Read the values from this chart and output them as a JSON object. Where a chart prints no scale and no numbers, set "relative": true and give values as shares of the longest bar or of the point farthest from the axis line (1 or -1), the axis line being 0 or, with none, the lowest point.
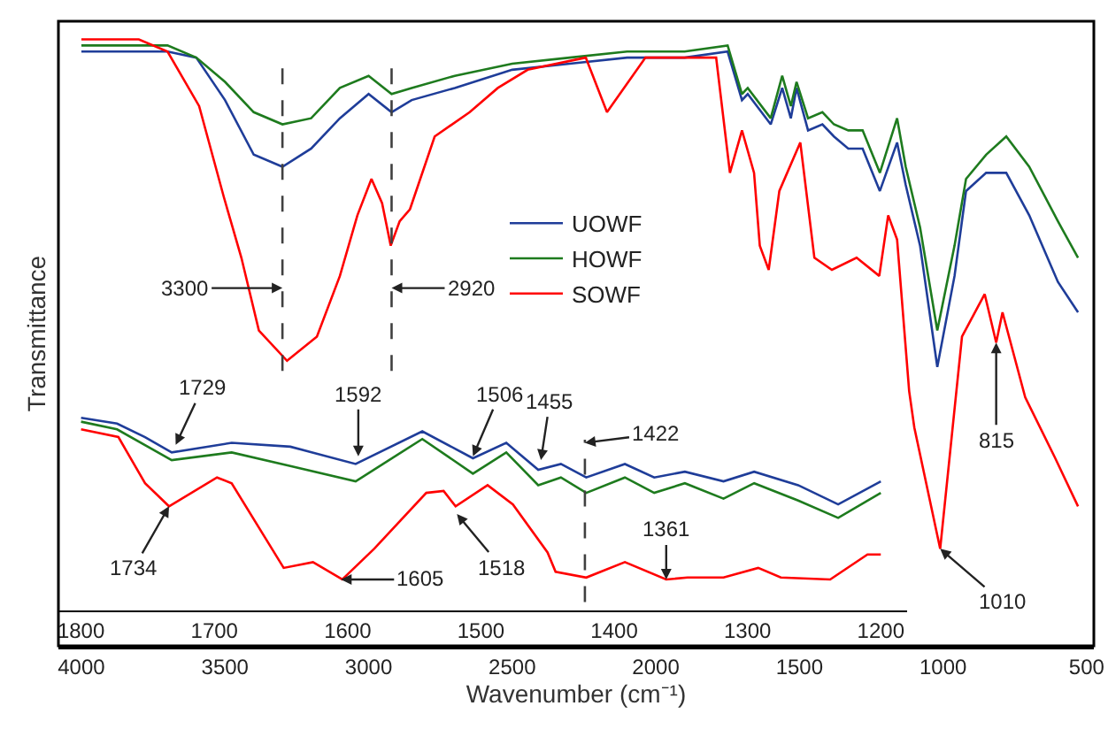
{
  "chart_data": [
    {
      "type": "line",
      "relative": true,
      "xlabel": "Wavenumber (cm⁻¹)",
      "ylabel": "Transmittance",
      "xlim": [
        4080,
        475
      ],
      "xticks": [
        4000,
        3500,
        3000,
        2500,
        2000,
        1500,
        1000,
        500
      ],
      "tick_labels": "x",
      "legend": "center",
      "series": [
        {
          "name": "UOWF",
          "color": "#1f3d99",
          "x": [
            4000,
            3800,
            3700,
            3600,
            3500,
            3400,
            3300,
            3200,
            3100,
            3000,
            2920,
            2850,
            2700,
            2500,
            2300,
            2100,
            1900,
            1750,
            1700,
            1680,
            1600,
            1560,
            1530,
            1510,
            1470,
            1420,
            1380,
            1330,
            1280,
            1220,
            1160,
            1130,
            1080,
            1020,
            960,
            920,
            850,
            780,
            700,
            600,
            530
          ],
          "values": [
            0.98,
            0.98,
            0.98,
            0.97,
            0.9,
            0.81,
            0.79,
            0.82,
            0.87,
            0.91,
            0.88,
            0.9,
            0.92,
            0.95,
            0.96,
            0.97,
            0.97,
            0.98,
            0.9,
            0.91,
            0.86,
            0.92,
            0.87,
            0.92,
            0.85,
            0.86,
            0.84,
            0.82,
            0.82,
            0.75,
            0.83,
            0.76,
            0.66,
            0.46,
            0.61,
            0.75,
            0.78,
            0.78,
            0.71,
            0.6,
            0.55
          ]
        },
        {
          "name": "HOWF",
          "color": "#1e7b1e",
          "x": [
            4000,
            3800,
            3700,
            3600,
            3500,
            3400,
            3300,
            3200,
            3100,
            3000,
            2920,
            2850,
            2700,
            2500,
            2300,
            2100,
            1900,
            1750,
            1700,
            1680,
            1600,
            1560,
            1530,
            1510,
            1470,
            1420,
            1380,
            1330,
            1280,
            1220,
            1160,
            1130,
            1080,
            1020,
            960,
            920,
            850,
            780,
            700,
            600,
            530
          ],
          "values": [
            0.99,
            0.99,
            0.99,
            0.97,
            0.93,
            0.88,
            0.86,
            0.87,
            0.92,
            0.94,
            0.91,
            0.92,
            0.94,
            0.96,
            0.97,
            0.98,
            0.98,
            0.99,
            0.91,
            0.92,
            0.87,
            0.94,
            0.89,
            0.93,
            0.87,
            0.88,
            0.86,
            0.85,
            0.85,
            0.78,
            0.87,
            0.79,
            0.69,
            0.52,
            0.66,
            0.77,
            0.81,
            0.84,
            0.79,
            0.7,
            0.64
          ]
        },
        {
          "name": "SOWF",
          "color": "#ff0000",
          "x": [
            4000,
            3800,
            3700,
            3590,
            3504,
            3443,
            3382,
            3284,
            3180,
            3100,
            3039,
            2990,
            2953,
            2923,
            2892,
            2856,
            2770,
            2648,
            2550,
            2446,
            2244,
            2170,
            2036,
            1790,
            1742,
            1700,
            1658,
            1638,
            1607,
            1570,
            1497,
            1448,
            1387,
            1301,
            1222,
            1191,
            1160,
            1118,
            1100,
            1010,
            934,
            855,
            815,
            793,
            714,
            610,
            530
          ],
          "values": [
            1.0,
            1.0,
            0.98,
            0.89,
            0.74,
            0.64,
            0.52,
            0.47,
            0.51,
            0.61,
            0.71,
            0.77,
            0.73,
            0.66,
            0.7,
            0.72,
            0.84,
            0.88,
            0.92,
            0.95,
            0.97,
            0.88,
            0.97,
            0.97,
            0.78,
            0.85,
            0.78,
            0.66,
            0.62,
            0.75,
            0.83,
            0.64,
            0.62,
            0.64,
            0.61,
            0.71,
            0.67,
            0.42,
            0.36,
            0.16,
            0.51,
            0.58,
            0.5,
            0.55,
            0.41,
            0.31,
            0.23
          ]
        }
      ],
      "ref_lines": [
        {
          "axis": "x",
          "value": 3300,
          "color": "#404040",
          "line_style": "dashed"
        },
        {
          "axis": "x",
          "value": 2920,
          "color": "#404040",
          "line_style": "dashed"
        }
      ],
      "annotations": [
        {
          "text": "3300",
          "x": 3300,
          "y": 0.59
        },
        {
          "text": "2920",
          "x": 2920,
          "y": 0.59
        },
        {
          "text": "815",
          "x": 815,
          "y": 0.5
        },
        {
          "text": "1010",
          "x": 1010,
          "y": 0.16
        }
      ]
    },
    {
      "type": "line",
      "relative": true,
      "xlim": [
        1817,
        1180
      ],
      "xticks": [
        1800,
        1700,
        1600,
        1500,
        1400,
        1300,
        1200
      ],
      "tick_labels": "x",
      "series": [
        {
          "color": "#1f3d99",
          "x": [
            1800,
            1773,
            1752,
            1732,
            1687,
            1643,
            1594,
            1544,
            1506,
            1481,
            1457,
            1440,
            1421,
            1392,
            1370,
            1347,
            1318,
            1295,
            1262,
            1232,
            1200
          ],
          "values": [
            1.0,
            0.97,
            0.9,
            0.82,
            0.87,
            0.85,
            0.76,
            0.93,
            0.79,
            0.87,
            0.73,
            0.76,
            0.69,
            0.76,
            0.69,
            0.72,
            0.67,
            0.72,
            0.65,
            0.55,
            0.67
          ]
        },
        {
          "color": "#1e7b1e",
          "x": [
            1800,
            1773,
            1732,
            1687,
            1643,
            1594,
            1544,
            1506,
            1481,
            1457,
            1440,
            1421,
            1392,
            1370,
            1347,
            1318,
            1295,
            1262,
            1232,
            1200
          ],
          "values": [
            0.98,
            0.94,
            0.78,
            0.82,
            0.75,
            0.67,
            0.89,
            0.71,
            0.82,
            0.65,
            0.69,
            0.61,
            0.69,
            0.61,
            0.66,
            0.58,
            0.66,
            0.57,
            0.48,
            0.61
          ]
        },
        {
          "color": "#ff0000",
          "x": [
            1800,
            1772,
            1752,
            1734,
            1698,
            1687,
            1648,
            1626,
            1604,
            1580,
            1541,
            1528,
            1519,
            1495,
            1476,
            1450,
            1444,
            1421,
            1392,
            1361,
            1345,
            1318,
            1292,
            1275,
            1238,
            1210,
            1200
          ],
          "values": [
            0.94,
            0.9,
            0.66,
            0.54,
            0.69,
            0.66,
            0.22,
            0.25,
            0.16,
            0.32,
            0.61,
            0.62,
            0.54,
            0.65,
            0.55,
            0.3,
            0.2,
            0.17,
            0.25,
            0.16,
            0.17,
            0.17,
            0.22,
            0.17,
            0.16,
            0.29,
            0.29
          ]
        }
      ],
      "ref_lines": [
        {
          "axis": "x",
          "value": 1422,
          "color": "#404040",
          "line_style": "dashed"
        }
      ],
      "annotations": [
        {
          "text": "1729",
          "x": 1729,
          "y": 0.86
        },
        {
          "text": "1592",
          "x": 1592,
          "y": 0.8
        },
        {
          "text": "1506",
          "x": 1506,
          "y": 0.8
        },
        {
          "text": "1455",
          "x": 1455,
          "y": 0.78
        },
        {
          "text": "1422",
          "x": 1422,
          "y": 0.87
        },
        {
          "text": "1734",
          "x": 1734,
          "y": 0.54
        },
        {
          "text": "1605",
          "x": 1605,
          "y": 0.16
        },
        {
          "text": "1518",
          "x": 1518,
          "y": 0.5
        },
        {
          "text": "1361",
          "x": 1361,
          "y": 0.16
        }
      ]
    }
  ]
}
